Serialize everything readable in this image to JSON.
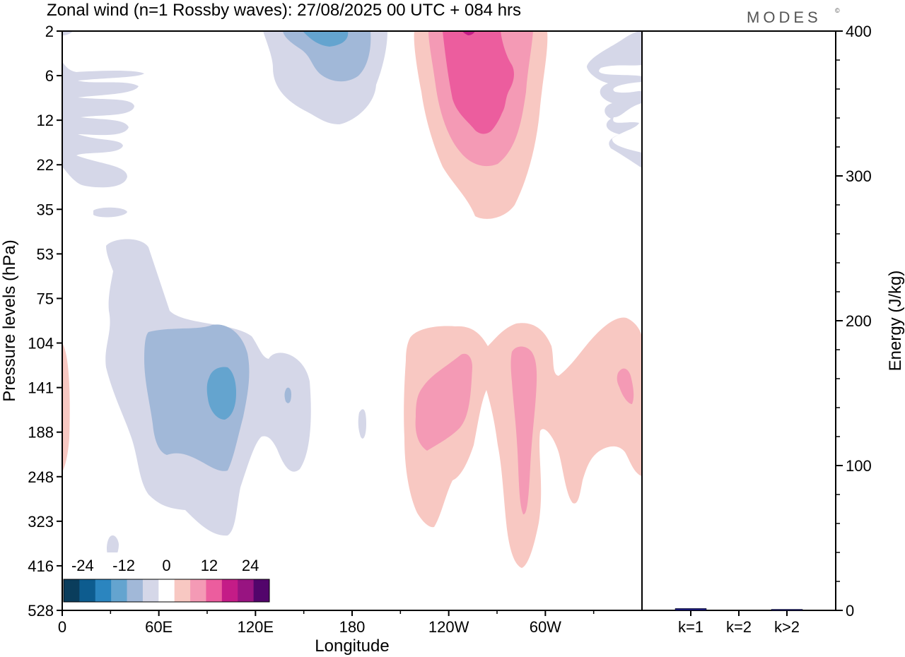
{
  "chart_data": {
    "type": "heatmap",
    "title": "Zonal wind (n=1 Rossby waves):  27/08/2025  00 UTC  + 084 hrs",
    "brand": "MODES",
    "brand_mark": "©",
    "main_panel": {
      "xlabel": "Longitude",
      "ylabel": "Pressure levels (hPa)",
      "x_ticks": [
        "0",
        "60E",
        "120E",
        "180",
        "120W",
        "60W"
      ],
      "y_ticks": [
        "2",
        "6",
        "12",
        "22",
        "35",
        "53",
        "75",
        "104",
        "141",
        "188",
        "248",
        "323",
        "416",
        "528"
      ],
      "colorbar": {
        "labels": [
          "-24",
          "-12",
          "0",
          "12",
          "24"
        ],
        "levels": [
          -30,
          -25,
          -20,
          -15,
          -10,
          -5,
          -2,
          2,
          5,
          10,
          15,
          20,
          25,
          30
        ],
        "colors": [
          "#0a3d5c",
          "#0d5c8f",
          "#2b85bf",
          "#64a4cf",
          "#a1b8d8",
          "#d5d7e8",
          "#ffffff",
          "#f8c8c2",
          "#f49ab5",
          "#ec5d9e",
          "#c41c87",
          "#981481",
          "#52056b"
        ]
      },
      "features": [
        {
          "label": "upper-level positive anomaly",
          "longitude_range": "120W-60W",
          "pressure_range_hPa": "2-35",
          "max_value": 20
        },
        {
          "label": "upper-level negative anomaly",
          "longitude_range": "120E-180",
          "pressure_range_hPa": "2-12",
          "min_value": -15
        },
        {
          "label": "lower-level negative anomaly",
          "longitude_range": "30E-130E",
          "pressure_range_hPa": "53-323",
          "min_value": -15
        },
        {
          "label": "lower-level positive anomaly",
          "longitude_range": "130W-0",
          "pressure_range_hPa": "104-416",
          "max_value": 10
        }
      ]
    },
    "energy_panel": {
      "ylabel": "Energy (J/kg)",
      "ylim": [
        0,
        400
      ],
      "y_ticks": [
        "0",
        "100",
        "200",
        "300",
        "400"
      ],
      "categories": [
        "k=1",
        "k=2",
        "k>2"
      ],
      "values": [
        1.3,
        0,
        0.5
      ],
      "bar_color": "#1a1a80"
    }
  }
}
